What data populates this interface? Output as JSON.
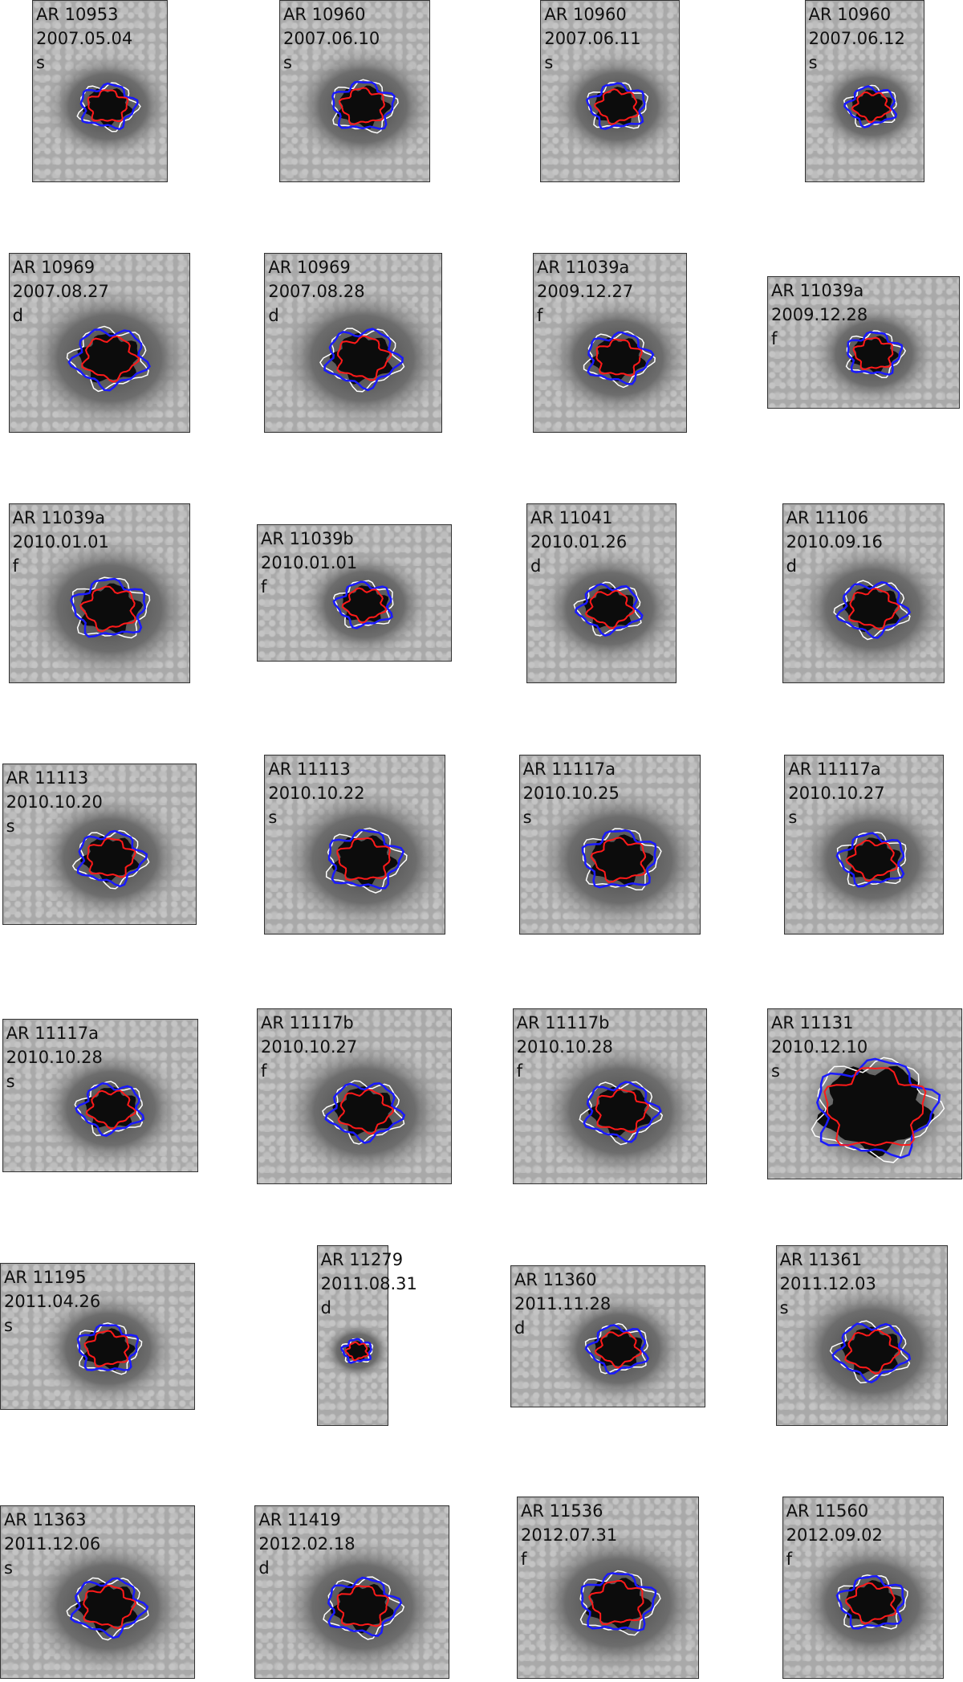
{
  "panels": [
    {
      "region": "AR 10953",
      "date": "2007.05.04",
      "type": "s"
    },
    {
      "region": "AR 10960",
      "date": "2007.06.10",
      "type": "s"
    },
    {
      "region": "AR 10960",
      "date": "2007.06.11",
      "type": "s"
    },
    {
      "region": "AR 10960",
      "date": "2007.06.12",
      "type": "s"
    },
    {
      "region": "AR 10969",
      "date": "2007.08.27",
      "type": "d"
    },
    {
      "region": "AR 10969",
      "date": "2007.08.28",
      "type": "d"
    },
    {
      "region": "AR 11039a",
      "date": "2009.12.27",
      "type": "f"
    },
    {
      "region": "AR 11039a",
      "date": "2009.12.28",
      "type": "f"
    },
    {
      "region": "AR 11039a",
      "date": "2010.01.01",
      "type": "f"
    },
    {
      "region": "AR 11039b",
      "date": "2010.01.01",
      "type": "f"
    },
    {
      "region": "AR 11041",
      "date": "2010.01.26",
      "type": "d"
    },
    {
      "region": "AR 11106",
      "date": "2010.09.16",
      "type": "d"
    },
    {
      "region": "AR 11113",
      "date": "2010.10.20",
      "type": "s"
    },
    {
      "region": "AR 11113",
      "date": "2010.10.22",
      "type": "s"
    },
    {
      "region": "AR 11117a",
      "date": "2010.10.25",
      "type": "s"
    },
    {
      "region": "AR 11117a",
      "date": "2010.10.27",
      "type": "s"
    },
    {
      "region": "AR 11117a",
      "date": "2010.10.28",
      "type": "s"
    },
    {
      "region": "AR 11117b",
      "date": "2010.10.27",
      "type": "f"
    },
    {
      "region": "AR 11117b",
      "date": "2010.10.28",
      "type": "f"
    },
    {
      "region": "AR 11131",
      "date": "2010.12.10",
      "type": "s"
    },
    {
      "region": "AR 11195",
      "date": "2011.04.26",
      "type": "s"
    },
    {
      "region": "AR 11279",
      "date": "2011.08.31",
      "type": "d"
    },
    {
      "region": "AR 11360",
      "date": "2011.11.28",
      "type": "d"
    },
    {
      "region": "AR 11361",
      "date": "2011.12.03",
      "type": "s"
    },
    {
      "region": "AR 11363",
      "date": "2011.12.06",
      "type": "s"
    },
    {
      "region": "AR 11419",
      "date": "2012.02.18",
      "type": "d"
    },
    {
      "region": "AR 11536",
      "date": "2012.07.31",
      "type": "f"
    },
    {
      "region": "AR 11560",
      "date": "2012.09.02",
      "type": "f"
    }
  ]
}
